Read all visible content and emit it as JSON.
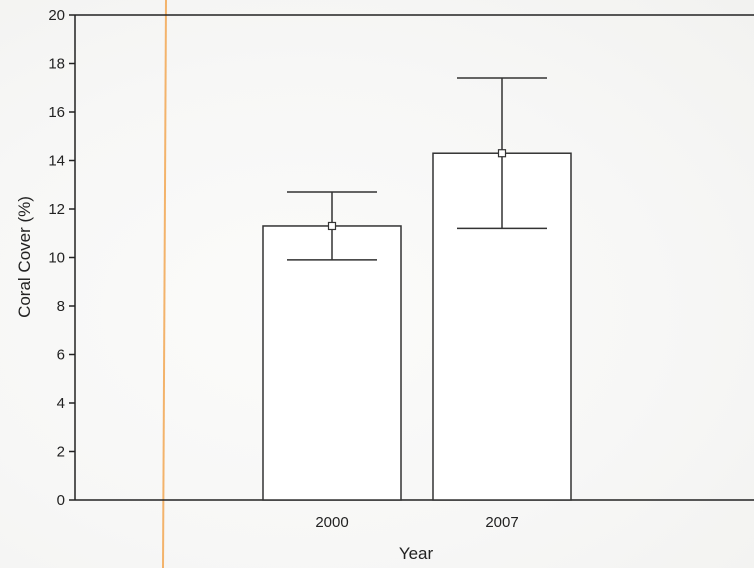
{
  "chart_data": {
    "type": "bar",
    "categories": [
      "2000",
      "2007"
    ],
    "values": [
      11.3,
      14.3
    ],
    "error_bars": {
      "upper": [
        12.7,
        17.4
      ],
      "lower": [
        9.9,
        11.2
      ]
    },
    "title": "",
    "xlabel": "Year",
    "ylabel": "Coral Cover (%)",
    "ylim": [
      0,
      20
    ],
    "yticks": [
      0,
      2,
      4,
      6,
      8,
      10,
      12,
      14,
      16,
      18,
      20
    ],
    "grid": false,
    "colors": {
      "bar_fill": "#ffffff",
      "bar_stroke": "#333333",
      "axis": "#222222",
      "error_bar": "#333333",
      "guide_line": "#f3b36b"
    }
  }
}
